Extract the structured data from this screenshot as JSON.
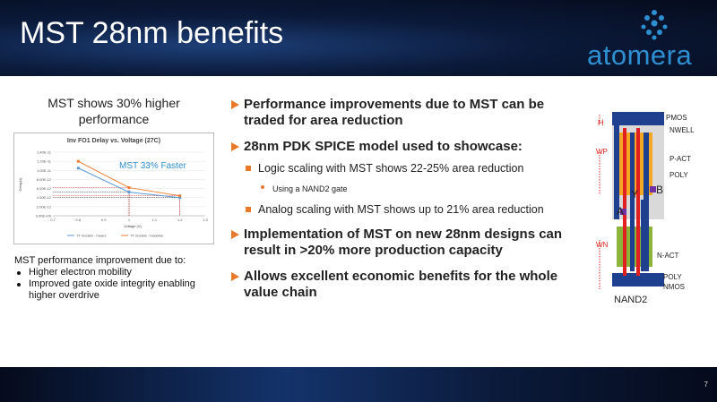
{
  "header": {
    "title": "MST 28nm benefits",
    "logo": "atomera"
  },
  "left": {
    "headline": "MST shows 30% higher performance",
    "note": {
      "title": "MST performance improvement due to:",
      "items": [
        "Higher electron mobility",
        "Improved gate oxide integrity enabling higher overdrive"
      ]
    }
  },
  "chart_data": {
    "type": "line",
    "title": "Inv FO1 Delay vs. Voltage (27C)",
    "x_label": "Voltage (V)",
    "y_label": "Delay(s)",
    "annotation": "MST 33% Faster",
    "x": [
      0.8,
      1.0,
      1.2
    ],
    "series": [
      {
        "name": "TT models - mears",
        "color": "#5b9bd5",
        "values": [
          1.05e-11,
          5.2e-12,
          4e-12
        ]
      },
      {
        "name": "TT models - baseline",
        "color": "#ed7d31",
        "values": [
          1.2e-11,
          6.2e-12,
          4.4e-12
        ]
      }
    ],
    "xlim": [
      0.7,
      1.3
    ],
    "xticks": [
      0.7,
      0.8,
      0.9,
      1,
      1.1,
      1.2,
      1.3
    ],
    "ylim": [
      0,
      1.4e-11
    ],
    "yticks": [
      {
        "value": 0,
        "label": "0.00E+00"
      },
      {
        "value": 2e-12,
        "label": "2.00E-12"
      },
      {
        "value": 4e-12,
        "label": "4.00E-12"
      },
      {
        "value": 6e-12,
        "label": "6.00E-12"
      },
      {
        "value": 8e-12,
        "label": "8.00E-12"
      },
      {
        "value": 1e-11,
        "label": "1.00E-11"
      },
      {
        "value": 1.2e-11,
        "label": "1.20E-11"
      },
      {
        "value": 1.4e-11,
        "label": "1.40E-11"
      }
    ],
    "grid": true
  },
  "bullets": [
    {
      "text": "Performance improvements due to MST can be traded for area reduction"
    },
    {
      "text": "28nm PDK SPICE model used to showcase:",
      "sub": [
        {
          "text": "Logic scaling with MST shows 22-25% area reduction",
          "sub": [
            "Using a NAND2 gate"
          ]
        },
        {
          "text": "Analog scaling with MST shows up to 21% area reduction"
        }
      ]
    },
    {
      "text": "Implementation of MST on new 28nm designs can result in >20% more production capacity"
    },
    {
      "text": "Allows excellent economic benefits for the whole value chain"
    }
  ],
  "diagram": {
    "pmos": "PMOS",
    "nwell": "NWELL",
    "pact": "P-ACT",
    "poly_top": "POLY",
    "nact": "N-ACT",
    "poly_bottom": "POLY",
    "nmos": "NMOS",
    "caption": "NAND2",
    "h": "H",
    "wp": "WP",
    "wn": "WN",
    "a": "A",
    "b": "B",
    "y": "Y"
  },
  "page_number": "7"
}
